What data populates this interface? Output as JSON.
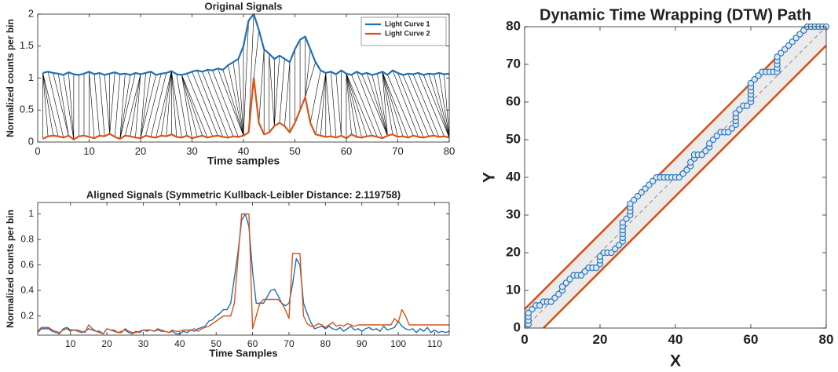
{
  "chart_data": [
    {
      "type": "line",
      "title": "Original Signals",
      "xlabel": "Time samples",
      "ylabel": "Normalized counts per bin",
      "xlim": [
        0,
        80
      ],
      "ylim": [
        0,
        2
      ],
      "xticks": [
        0,
        10,
        20,
        30,
        40,
        50,
        60,
        70,
        80
      ],
      "yticks": [
        0,
        0.5,
        1,
        1.5,
        2
      ],
      "legend": "northeast",
      "warping_lines": true,
      "x": [
        1,
        2,
        3,
        4,
        5,
        6,
        7,
        8,
        9,
        10,
        11,
        12,
        13,
        14,
        15,
        16,
        17,
        18,
        19,
        20,
        21,
        22,
        23,
        24,
        25,
        26,
        27,
        28,
        29,
        30,
        31,
        32,
        33,
        34,
        35,
        36,
        37,
        38,
        39,
        40,
        41,
        42,
        43,
        44,
        45,
        46,
        47,
        48,
        49,
        50,
        51,
        52,
        53,
        54,
        55,
        56,
        57,
        58,
        59,
        60,
        61,
        62,
        63,
        64,
        65,
        66,
        67,
        68,
        69,
        70,
        71,
        72,
        73,
        74,
        75,
        76,
        77,
        78,
        79,
        80
      ],
      "series": [
        {
          "name": "Light Curve 1",
          "color": "#1f6fb5",
          "values": [
            1.08,
            1.1,
            1.08,
            1.07,
            1.05,
            1.09,
            1.06,
            1.05,
            1.07,
            1.1,
            1.06,
            1.08,
            1.05,
            1.07,
            1.09,
            1.06,
            1.07,
            1.05,
            1.08,
            1.06,
            1.08,
            1.1,
            1.05,
            1.07,
            1.08,
            1.11,
            1.06,
            1.05,
            1.07,
            1.1,
            1.12,
            1.1,
            1.13,
            1.12,
            1.15,
            1.13,
            1.2,
            1.25,
            1.3,
            1.5,
            1.9,
            2.0,
            1.75,
            1.45,
            1.38,
            1.3,
            1.35,
            1.3,
            1.25,
            1.45,
            1.6,
            1.65,
            1.45,
            1.25,
            1.12,
            1.08,
            1.1,
            1.06,
            1.12,
            1.07,
            1.05,
            1.1,
            1.06,
            1.08,
            1.05,
            1.07,
            1.1,
            1.05,
            1.12,
            1.08,
            1.05,
            1.07,
            1.06,
            1.08,
            1.05,
            1.07,
            1.06,
            1.08,
            1.06,
            1.07
          ]
        },
        {
          "name": "Light Curve 2",
          "color": "#d95319",
          "values": [
            0.05,
            0.09,
            0.1,
            0.09,
            0.07,
            0.1,
            0.04,
            0.09,
            0.1,
            0.08,
            0.06,
            0.1,
            0.09,
            0.13,
            0.08,
            0.05,
            0.1,
            0.09,
            0.07,
            0.06,
            0.1,
            0.08,
            0.07,
            0.1,
            0.09,
            0.12,
            0.08,
            0.07,
            0.1,
            0.06,
            0.08,
            0.1,
            0.07,
            0.09,
            0.1,
            0.08,
            0.07,
            0.09,
            0.08,
            0.1,
            0.15,
            1.0,
            0.3,
            0.12,
            0.15,
            0.25,
            0.3,
            0.25,
            0.15,
            0.3,
            0.5,
            0.7,
            0.3,
            0.12,
            0.1,
            0.08,
            0.09,
            0.07,
            0.1,
            0.06,
            0.12,
            0.08,
            0.07,
            0.09,
            0.1,
            0.08,
            0.06,
            0.1,
            0.12,
            0.08,
            0.09,
            0.07,
            0.1,
            0.08,
            0.07,
            0.09,
            0.1,
            0.08,
            0.09,
            0.07
          ]
        }
      ]
    },
    {
      "type": "line",
      "title": "Aligned Signals (Symmetric Kullback-Leibler Distance: 2.119758)",
      "xlabel": "Time Samples",
      "ylabel": "Normalized counts per bin",
      "xlim": [
        1,
        114
      ],
      "ylim": [
        0.05,
        1.09
      ],
      "xticks": [
        10,
        20,
        30,
        40,
        50,
        60,
        70,
        80,
        90,
        100,
        110
      ],
      "yticks": [
        0.2,
        0.4,
        0.6,
        0.8,
        1
      ],
      "x": [
        1,
        2,
        3,
        4,
        5,
        6,
        7,
        8,
        9,
        10,
        11,
        12,
        13,
        14,
        15,
        16,
        17,
        18,
        19,
        20,
        21,
        22,
        23,
        24,
        25,
        26,
        27,
        28,
        29,
        30,
        31,
        32,
        33,
        34,
        35,
        36,
        37,
        38,
        39,
        40,
        41,
        42,
        43,
        44,
        45,
        46,
        47,
        48,
        49,
        50,
        51,
        52,
        53,
        54,
        55,
        56,
        57,
        58,
        59,
        60,
        61,
        62,
        63,
        64,
        65,
        66,
        67,
        68,
        69,
        70,
        71,
        72,
        73,
        74,
        75,
        76,
        77,
        78,
        79,
        80,
        81,
        82,
        83,
        84,
        85,
        86,
        87,
        88,
        89,
        90,
        91,
        92,
        93,
        94,
        95,
        96,
        97,
        98,
        99,
        100,
        101,
        102,
        103,
        104,
        105,
        106,
        107,
        108,
        109,
        110,
        111,
        112,
        113,
        114
      ],
      "series": [
        {
          "color": "#1f6fb5",
          "values": [
            0.07,
            0.1,
            0.1,
            0.1,
            0.08,
            0.07,
            0.06,
            0.1,
            0.11,
            0.09,
            0.09,
            0.08,
            0.07,
            0.08,
            0.1,
            0.09,
            0.08,
            0.08,
            0.06,
            0.1,
            0.09,
            0.08,
            0.07,
            0.08,
            0.09,
            0.07,
            0.06,
            0.08,
            0.07,
            0.09,
            0.08,
            0.09,
            0.08,
            0.09,
            0.08,
            0.08,
            0.07,
            0.08,
            0.06,
            0.06,
            0.08,
            0.07,
            0.09,
            0.08,
            0.1,
            0.11,
            0.12,
            0.16,
            0.17,
            0.2,
            0.22,
            0.25,
            0.25,
            0.3,
            0.5,
            0.7,
            0.95,
            1.0,
            0.9,
            0.55,
            0.3,
            0.3,
            0.3,
            0.35,
            0.4,
            0.41,
            0.36,
            0.3,
            0.28,
            0.3,
            0.45,
            0.65,
            0.6,
            0.3,
            0.22,
            0.15,
            0.1,
            0.11,
            0.12,
            0.1,
            0.12,
            0.1,
            0.09,
            0.11,
            0.08,
            0.1,
            0.12,
            0.09,
            0.1,
            0.08,
            0.1,
            0.11,
            0.09,
            0.1,
            0.08,
            0.12,
            0.09,
            0.1,
            0.11,
            0.16,
            0.12,
            0.1,
            0.09,
            0.1,
            0.07,
            0.1,
            0.08,
            0.11,
            0.07,
            0.09,
            0.07,
            0.08,
            0.07,
            0.08
          ]
        },
        {
          "color": "#d95319",
          "values": [
            0.08,
            0.11,
            0.11,
            0.11,
            0.09,
            0.08,
            0.07,
            0.09,
            0.1,
            0.08,
            0.09,
            0.09,
            0.08,
            0.07,
            0.13,
            0.1,
            0.08,
            0.07,
            0.06,
            0.1,
            0.09,
            0.09,
            0.07,
            0.07,
            0.1,
            0.08,
            0.07,
            0.07,
            0.08,
            0.09,
            0.09,
            0.09,
            0.08,
            0.1,
            0.09,
            0.08,
            0.07,
            0.09,
            0.08,
            0.08,
            0.09,
            0.09,
            0.09,
            0.1,
            0.08,
            0.1,
            0.11,
            0.12,
            0.14,
            0.16,
            0.18,
            0.2,
            0.2,
            0.2,
            0.3,
            0.65,
            1.0,
            1.0,
            1.0,
            0.1,
            0.2,
            0.3,
            0.33,
            0.33,
            0.33,
            0.33,
            0.33,
            0.3,
            0.25,
            0.18,
            0.69,
            0.69,
            0.69,
            0.2,
            0.14,
            0.12,
            0.12,
            0.14,
            0.13,
            0.11,
            0.13,
            0.15,
            0.12,
            0.13,
            0.12,
            0.14,
            0.13,
            0.12,
            0.13,
            0.13,
            0.13,
            0.13,
            0.13,
            0.13,
            0.13,
            0.13,
            0.13,
            0.13,
            0.18,
            0.15,
            0.25,
            0.2,
            0.13,
            0.13,
            0.13,
            0.13,
            0.13,
            0.13,
            0.13,
            0.13,
            0.13,
            0.13,
            0.13,
            0.13
          ]
        }
      ]
    },
    {
      "type": "scatter",
      "title": "Dynamic Time Wrapping (DTW) Path",
      "xlabel": "X",
      "ylabel": "Y",
      "xlim": [
        0,
        80
      ],
      "ylim": [
        0,
        80
      ],
      "xticks": [
        0,
        20,
        40,
        60,
        80
      ],
      "yticks": [
        0,
        10,
        20,
        30,
        40,
        50,
        60,
        70,
        80
      ],
      "series": [
        {
          "color": "#1f6fb5",
          "x": [
            1,
            1,
            1,
            1,
            2,
            3,
            4,
            5,
            6,
            7,
            8,
            9,
            10,
            10,
            11,
            12,
            13,
            14,
            15,
            16,
            17,
            18,
            19,
            20,
            20,
            20,
            21,
            22,
            23,
            24,
            25,
            26,
            26,
            26,
            26,
            26,
            26,
            27,
            28,
            28,
            28,
            28,
            29,
            30,
            31,
            32,
            33,
            34,
            35,
            36,
            37,
            38,
            39,
            40,
            41,
            42,
            43,
            44,
            44,
            45,
            45,
            46,
            47,
            48,
            49,
            49,
            50,
            51,
            52,
            53,
            54,
            55,
            56,
            56,
            56,
            56,
            57,
            58,
            59,
            60,
            60,
            60,
            60,
            60,
            60,
            61,
            62,
            63,
            64,
            65,
            66,
            67,
            67,
            67,
            67,
            67,
            68,
            69,
            70,
            71,
            72,
            73,
            74,
            75,
            76,
            77,
            78,
            79,
            80
          ],
          "y": [
            1,
            2,
            3,
            4,
            5,
            6,
            6,
            7,
            7,
            7,
            8,
            9,
            10,
            11,
            12,
            13,
            14,
            14,
            14,
            15,
            16,
            16,
            16,
            17,
            18,
            19,
            20,
            20,
            20,
            21,
            22,
            23,
            24,
            25,
            26,
            27,
            28,
            29,
            30,
            31,
            32,
            33,
            34,
            35,
            36,
            37,
            38,
            39,
            40,
            40,
            40,
            40,
            40,
            40,
            40,
            41,
            42,
            43,
            44,
            45,
            46,
            46,
            46,
            47,
            48,
            49,
            50,
            51,
            52,
            52,
            52,
            53,
            54,
            55,
            56,
            57,
            58,
            59,
            59,
            60,
            61,
            62,
            63,
            64,
            65,
            66,
            67,
            68,
            68,
            68,
            68,
            68,
            69,
            70,
            71,
            72,
            73,
            74,
            75,
            76,
            77,
            78,
            79,
            80,
            80,
            80,
            80,
            80,
            80
          ]
        }
      ],
      "bands": [
        {
          "color": "#d95319",
          "x": [
            0,
            75
          ],
          "y": [
            5,
            80
          ]
        },
        {
          "color": "#d95319",
          "x": [
            5,
            80
          ],
          "y": [
            0,
            75
          ]
        }
      ]
    }
  ]
}
